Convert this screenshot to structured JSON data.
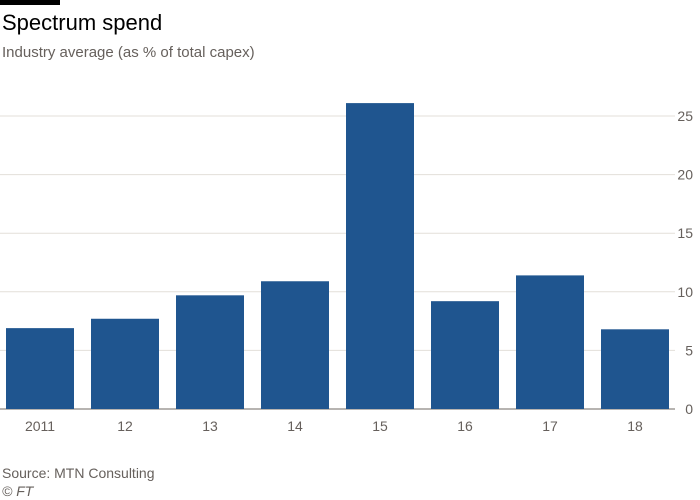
{
  "header": {
    "title": "Spectrum spend",
    "subtitle": "Industry average (as % of total capex)"
  },
  "footer": {
    "source": "Source: MTN Consulting",
    "copyright": "© FT"
  },
  "colors": {
    "bar": "#1f558f",
    "grid": "#e3dfd9",
    "axis": "#66605c"
  },
  "chart_data": {
    "type": "bar",
    "title": "Spectrum spend",
    "subtitle": "Industry average (as % of total capex)",
    "categories": [
      "2011",
      "12",
      "13",
      "14",
      "15",
      "16",
      "17",
      "18"
    ],
    "values": [
      6.9,
      7.7,
      9.7,
      10.9,
      26.1,
      9.2,
      11.4,
      6.8
    ],
    "ylim": [
      0,
      25
    ],
    "yticks": [
      0,
      5,
      10,
      15,
      20,
      25
    ],
    "grid": true,
    "y_axis_side": "right"
  }
}
